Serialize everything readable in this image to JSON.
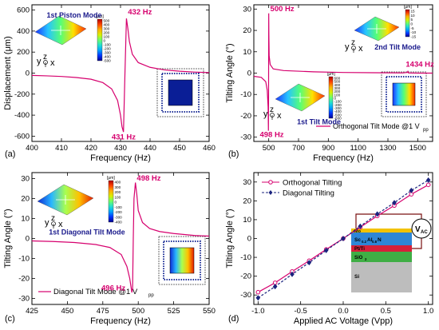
{
  "panels": [
    {
      "id": "a",
      "panel_label": "(a)",
      "type": "line",
      "xlabel": "Frequency (Hz)",
      "ylabel": "Displacement (μm)",
      "xlim": [
        400,
        460
      ],
      "ylim": [
        -650,
        650
      ],
      "xticks": [
        400,
        410,
        420,
        430,
        440,
        450,
        460
      ],
      "yticks": [
        -600,
        -400,
        -200,
        0,
        200,
        400,
        600
      ],
      "series": [
        {
          "color": "#d6006e",
          "x": [
            400,
            405,
            410,
            415,
            420,
            424,
            427,
            429,
            430,
            430.5,
            431,
            431.5,
            432,
            432.5,
            433,
            434,
            436,
            440,
            445,
            450,
            455,
            460
          ],
          "y": [
            -22,
            -26,
            -32,
            -42,
            -58,
            -90,
            -150,
            -260,
            -400,
            -510,
            -560,
            0,
            520,
            420,
            300,
            180,
            100,
            55,
            30,
            18,
            10,
            5
          ]
        }
      ],
      "annotations": [
        {
          "text": "432 Hz",
          "x": 432.5,
          "y": 560,
          "color": "#d6006e"
        },
        {
          "text": "431 Hz",
          "x": 427,
          "y": -630,
          "color": "#d6006e"
        },
        {
          "text": "1st Piston Mode",
          "x": 405,
          "y": 530,
          "color": "#1a1a8c"
        }
      ],
      "inset_colorbar": {
        "unit": "[μm]",
        "ticks": [
          "500",
          "400",
          "300",
          "200",
          "100",
          "0",
          "-100",
          "-200",
          "-300",
          "-400",
          "-500"
        ]
      },
      "axes_glyph": {
        "z": "z",
        "y": "y",
        "x": "x"
      }
    },
    {
      "id": "b",
      "panel_label": "(b)",
      "type": "line",
      "xlabel": "Frequency (Hz)",
      "ylabel": "Tilting Angle (°)",
      "xlim": [
        400,
        1600
      ],
      "ylim": [
        -32,
        32
      ],
      "xticks": [
        500,
        700,
        900,
        1100,
        1300,
        1500
      ],
      "yticks": [
        -30,
        -20,
        -10,
        0,
        10,
        20,
        30
      ],
      "series": [
        {
          "color": "#d6006e",
          "x": [
            400,
            450,
            480,
            490,
            496,
            498,
            499,
            500,
            501,
            503,
            510,
            530,
            600,
            800,
            1000,
            1200,
            1400,
            1430,
            1434,
            1438,
            1500,
            1600
          ],
          "y": [
            -1.5,
            -2,
            -4,
            -8,
            -16,
            -27,
            -10,
            28,
            18,
            8,
            4,
            2,
            1.2,
            0.6,
            0.3,
            0.2,
            0.1,
            0.3,
            0.8,
            0.1,
            0,
            0
          ]
        }
      ],
      "annotations": [
        {
          "text": "500 Hz",
          "x": 510,
          "y": 29,
          "color": "#d6006e"
        },
        {
          "text": "498 Hz",
          "x": 440,
          "y": -30,
          "color": "#d6006e"
        },
        {
          "text": "1434 Hz",
          "x": 1420,
          "y": 3,
          "color": "#d6006e"
        },
        {
          "text": "2nd Tilt Mode",
          "x": 1210,
          "y": 11,
          "color": "#1a1a8c"
        },
        {
          "text": "1st Tilt Mode",
          "x": 690,
          "y": -24,
          "color": "#1a1a8c"
        }
      ],
      "legend": {
        "label": "Orthogonal Tilt Mode @1 V",
        "subscript": "pp",
        "position": "bottom-right"
      },
      "inset_colorbar_top": {
        "unit": "[μm]",
        "ticks": [
          "15",
          "10",
          "5",
          "0",
          "-5",
          "-10",
          "-15"
        ]
      },
      "inset_colorbar_bottom": {
        "unit": "[μm]",
        "ticks": [
          "600",
          "500",
          "400",
          "300",
          "200",
          "100",
          "0",
          "-100",
          "-200",
          "-300",
          "-400",
          "-500",
          "-600"
        ]
      },
      "axes_glyph": {
        "z": "z",
        "y": "y",
        "x": "x"
      }
    },
    {
      "id": "c",
      "panel_label": "(c)",
      "type": "line",
      "xlabel": "Frequency (Hz)",
      "ylabel": "Tilting Angle (°)",
      "xlim": [
        425,
        550
      ],
      "ylim": [
        -33,
        33
      ],
      "xticks": [
        425,
        450,
        475,
        500,
        525,
        550
      ],
      "yticks": [
        -30,
        -20,
        -10,
        0,
        10,
        20,
        30
      ],
      "series": [
        {
          "color": "#d6006e",
          "x": [
            425,
            440,
            455,
            470,
            480,
            488,
            492,
            494,
            495.5,
            496,
            496.5,
            497,
            498,
            499,
            500,
            503,
            508,
            515,
            525,
            540,
            550
          ],
          "y": [
            -1.2,
            -1.5,
            -2,
            -3,
            -4.5,
            -8,
            -14,
            -20,
            -27,
            -25,
            0,
            20,
            28,
            22,
            14,
            8,
            5,
            3.5,
            2.5,
            1.5,
            1.2
          ]
        }
      ],
      "annotations": [
        {
          "text": "498 Hz",
          "x": 499,
          "y": 29,
          "color": "#d6006e"
        },
        {
          "text": "496 Hz",
          "x": 474,
          "y": -26,
          "color": "#d6006e"
        },
        {
          "text": "1st Diagonal Tilt Mode",
          "x": 437,
          "y": 2,
          "color": "#1a1a8c"
        }
      ],
      "legend": {
        "label": "Diagonal Tilt Mode @1 V",
        "subscript": "pp",
        "position": "bottom-left"
      },
      "inset_colorbar": {
        "unit": "[μm]",
        "ticks": [
          "400",
          "300",
          "200",
          "100",
          "0",
          "-100",
          "-200",
          "-300",
          "-400"
        ]
      },
      "axes_glyph": {
        "z": "z",
        "y": "y",
        "x": "x"
      }
    },
    {
      "id": "d",
      "panel_label": "(d)",
      "type": "line",
      "xlabel": "Applied AC Voltage (Vpp)",
      "ylabel": "Tilting Angle (°)",
      "xlim": [
        -1.05,
        1.05
      ],
      "ylim": [
        -35,
        35
      ],
      "xticks": [
        -1.0,
        -0.5,
        0.0,
        0.5,
        1.0
      ],
      "xticklabels": [
        "-1.0",
        "-0.5",
        "0.0",
        "0.5",
        "1.0"
      ],
      "yticks": [
        -30,
        -20,
        -10,
        0,
        10,
        20,
        30
      ],
      "series": [
        {
          "name": "Orthogonal Tilting",
          "color": "#d6006e",
          "marker": "circle",
          "dash": "solid",
          "x": [
            -1.0,
            -0.8,
            -0.6,
            -0.4,
            -0.2,
            0.0,
            0.2,
            0.4,
            0.6,
            0.8,
            1.0
          ],
          "y": [
            -28.5,
            -23.5,
            -17.5,
            -11.8,
            -5.8,
            0,
            6.0,
            12.0,
            17.5,
            23.5,
            28.5
          ]
        },
        {
          "name": "Diagonal Tilting",
          "color": "#1a237e",
          "marker": "diamond",
          "dash": "dashed",
          "x": [
            -1.0,
            -0.8,
            -0.6,
            -0.4,
            -0.2,
            0.0,
            0.2,
            0.4,
            0.6,
            0.8,
            1.0
          ],
          "y": [
            -31.5,
            -25.5,
            -19.0,
            -12.8,
            -6.3,
            0,
            6.5,
            13.0,
            19.0,
            25.5,
            31.0
          ]
        }
      ],
      "legend": {
        "position": "top-left"
      },
      "inset_stack": {
        "layers": [
          "Mo",
          "Sc",
          "0.2",
          "Al",
          "0.8",
          "N",
          "Pt/Ti",
          "SiO",
          "2",
          "Si"
        ],
        "source_label": "V",
        "source_sub": "AC"
      }
    }
  ]
}
